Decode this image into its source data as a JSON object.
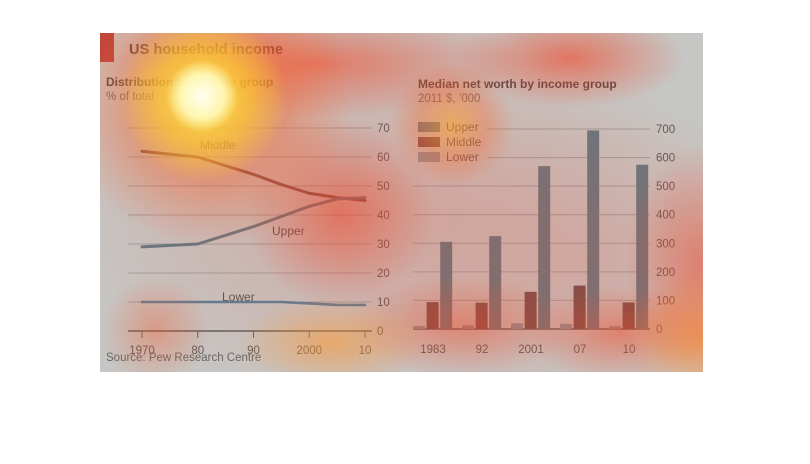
{
  "page": {
    "title": "US household income",
    "source": "Source: Pew Research Centre"
  },
  "colors": {
    "accent_red": "#E3120B",
    "heading_text": "#201B18",
    "subtitle_text": "#55504B",
    "axis_text": "#3F3B38",
    "series_label_text": "#33302D",
    "gridline": "#B6B6B2",
    "axis_line": "#44403E",
    "upper": "#4A7284",
    "middle_line": "#6E2F29",
    "middle_bar": "#5E2826",
    "lower_line": "#3E7CA6",
    "lower_bar": "#8CA2B4"
  },
  "chart_data": [
    {
      "type": "line",
      "title": "Distribution by income group",
      "subtitle": "% of total",
      "x": [
        1970,
        1980,
        1990,
        1995,
        2000,
        2005,
        2010
      ],
      "series": [
        {
          "name": "Middle",
          "color": "#6E2F29",
          "values": [
            62,
            60,
            54,
            50.5,
            47.5,
            46,
            45
          ]
        },
        {
          "name": "Upper",
          "color": "#4A7284",
          "values": [
            29,
            30,
            36,
            39.5,
            43,
            45.5,
            46
          ]
        },
        {
          "name": "Lower",
          "color": "#3E7CA6",
          "values": [
            10,
            10,
            10,
            10,
            9.5,
            9,
            9
          ]
        }
      ],
      "xtick_positions": [
        1970,
        1980,
        1990,
        2000,
        2010
      ],
      "xtick_labels": [
        "1970",
        "80",
        "90",
        "2000",
        "10"
      ],
      "yticks": [
        0,
        10,
        20,
        30,
        40,
        50,
        60,
        70
      ],
      "ylim": [
        0,
        70
      ],
      "y_axis_side": "right",
      "grid": true
    },
    {
      "type": "bar",
      "title": "Median net worth by income group",
      "subtitle": "2011 $, ’000",
      "categories": [
        "1983",
        "92",
        "2001",
        "07",
        "10"
      ],
      "series": [
        {
          "name": "Lower",
          "color": "#8CA2B4",
          "values": [
            11,
            13,
            20,
            18,
            10
          ]
        },
        {
          "name": "Middle",
          "color": "#5E2826",
          "values": [
            94,
            92,
            130,
            152,
            93
          ]
        },
        {
          "name": "Upper",
          "color": "#4A7284",
          "values": [
            305,
            325,
            570,
            695,
            575
          ]
        }
      ],
      "legend_order": [
        "Upper",
        "Middle",
        "Lower"
      ],
      "legend_position": "top-left",
      "yticks": [
        0,
        100,
        200,
        300,
        400,
        500,
        600,
        700
      ],
      "ylim": [
        0,
        700
      ],
      "y_axis_side": "right",
      "grid": true
    }
  ]
}
